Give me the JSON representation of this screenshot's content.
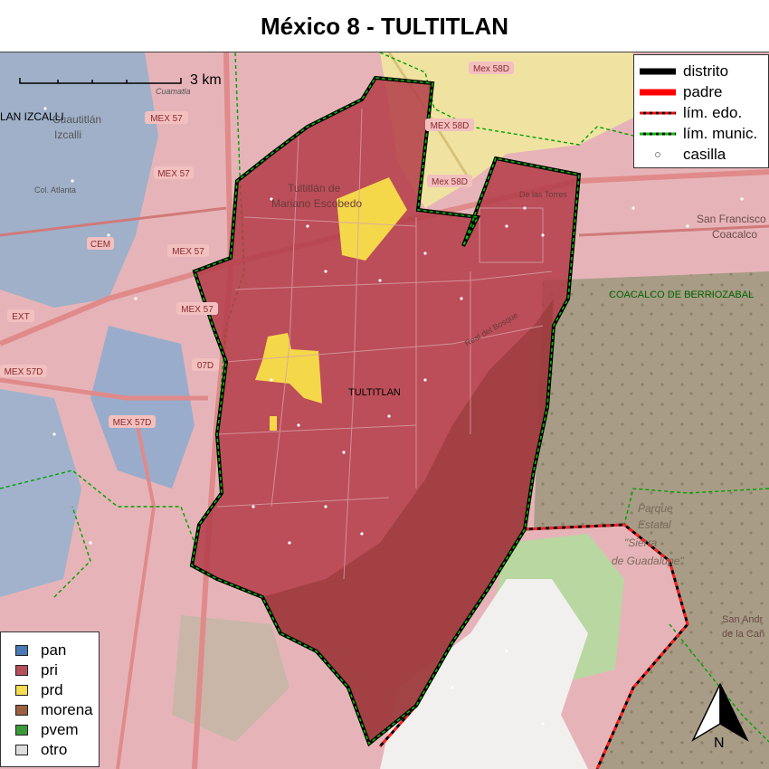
{
  "title": "México 8 - TULTITLAN",
  "scalebar": {
    "label": "3 km"
  },
  "map": {
    "place_labels": [
      {
        "id": "izcalli",
        "text": "LAN IZCALLI",
        "color": "#000000"
      },
      {
        "id": "tultitlan-center",
        "text": "TULTITLAN",
        "color": "#000000"
      },
      {
        "id": "coacalco",
        "text": "COACALCO DE BERRIOZABAL",
        "color": "#006400"
      },
      {
        "id": "tultitlan-escobedo-1",
        "text": "Tultitlán de",
        "color": "#6b3a3a"
      },
      {
        "id": "tultitlan-escobedo-2",
        "text": "Mariano Escobedo",
        "color": "#6b3a3a"
      },
      {
        "id": "san-francisco-1",
        "text": "San Francisco",
        "color": "#6b4a4a"
      },
      {
        "id": "san-francisco-2",
        "text": "Coacalco",
        "color": "#6b4a4a"
      },
      {
        "id": "cuautitlan-izcalli-1",
        "text": "Cuautitlán",
        "color": "#555555"
      },
      {
        "id": "cuautitlan-izcalli-2",
        "text": "Izcalli",
        "color": "#555555"
      },
      {
        "id": "parque-1",
        "text": "Parque",
        "color": "#7a6a5a"
      },
      {
        "id": "parque-2",
        "text": "Estatal",
        "color": "#7a6a5a"
      },
      {
        "id": "parque-3",
        "text": "\"Sierra",
        "color": "#7a6a5a"
      },
      {
        "id": "parque-4",
        "text": "de Guadalupe\"",
        "color": "#7a6a5a"
      },
      {
        "id": "san-andres-1",
        "text": "San Andr",
        "color": "#6b4a4a"
      },
      {
        "id": "san-andres-2",
        "text": "de la Cañ",
        "color": "#6b4a4a"
      },
      {
        "id": "de-las-torres",
        "text": "De las Torres",
        "color": "#6b3a3a"
      },
      {
        "id": "real-del-bosque",
        "text": "Real del Bosque",
        "color": "#6b3a3a"
      },
      {
        "id": "col-atlanta",
        "text": "Col. Atlanta",
        "color": "#555555"
      },
      {
        "id": "cuamatla",
        "text": "Cuamatla",
        "color": "#555555"
      }
    ],
    "road_shields": [
      {
        "id": "mex57-a",
        "text": "MEX 57"
      },
      {
        "id": "mex57-b",
        "text": "MEX 57"
      },
      {
        "id": "mex57-c",
        "text": "MEX 57"
      },
      {
        "id": "mex57-d",
        "text": "MEX 57"
      },
      {
        "id": "mex57d-a",
        "text": "MEX 57D"
      },
      {
        "id": "mex57d-b",
        "text": "MEX 57D"
      },
      {
        "id": "mex58d-a",
        "text": "Mex 58D"
      },
      {
        "id": "mex58d-b",
        "text": "MEX 58D"
      },
      {
        "id": "mex58d-c",
        "text": "Mex 58D"
      },
      {
        "id": "cem",
        "text": "CEM"
      },
      {
        "id": "ext",
        "text": "EXT"
      },
      {
        "id": "o7d",
        "text": "07D"
      }
    ],
    "north_arrow": {
      "label": "N"
    }
  },
  "line_legend": {
    "items": [
      {
        "label": "distrito",
        "color": "#000000"
      },
      {
        "label": "padre",
        "color": "#ff0000"
      },
      {
        "label": "lím. edo.",
        "color": "#ff0000"
      },
      {
        "label": "lím. munic.",
        "color": "#00b000"
      },
      {
        "label": "casilla",
        "color": "#888888"
      }
    ]
  },
  "party_legend": {
    "items": [
      {
        "label": "pan",
        "color": "#4a7ab5"
      },
      {
        "label": "pri",
        "color": "#b5505a"
      },
      {
        "label": "prd",
        "color": "#f5dc50"
      },
      {
        "label": "morena",
        "color": "#9a6040"
      },
      {
        "label": "pvem",
        "color": "#3a9a3a"
      },
      {
        "label": "otro",
        "color": "#dddddd"
      }
    ]
  }
}
